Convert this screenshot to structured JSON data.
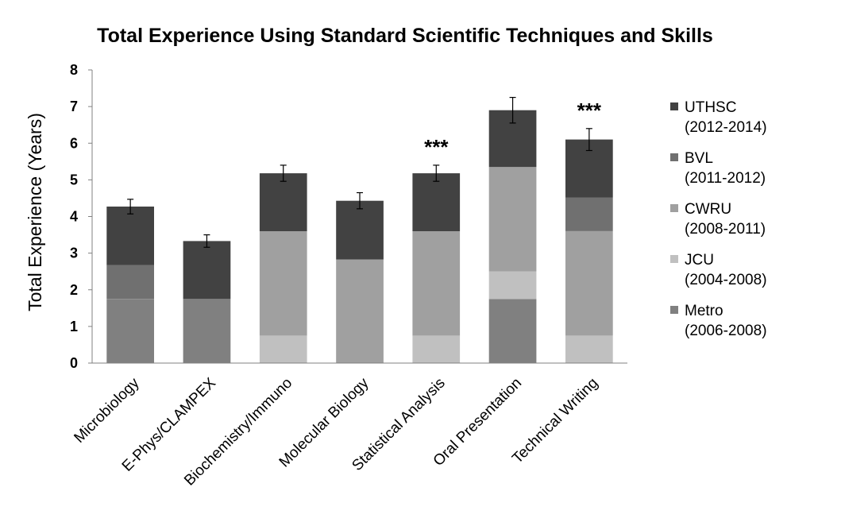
{
  "chart_data": {
    "type": "bar",
    "stacked": true,
    "title": "Total Experience Using Standard Scientific Techniques and Skills",
    "xlabel": "",
    "ylabel": "Total Experience (Years)",
    "ylim": [
      0,
      8
    ],
    "yticks": [
      0,
      1,
      2,
      3,
      4,
      5,
      6,
      7,
      8
    ],
    "grid": false,
    "legend_position": "right",
    "categories": [
      "Microbiology",
      "E-Phys/CLAMPEX",
      "Biochemistry/Immuno",
      "Molecular Biology",
      "Statistical Analysis",
      "Oral Presentation",
      "Technical Writing"
    ],
    "series": [
      {
        "name": "Metro\n(2006-2008)",
        "color": "#808080",
        "values": [
          1.75,
          1.75,
          0,
          0,
          0,
          1.75,
          0
        ]
      },
      {
        "name": "JCU\n(2004-2008)",
        "color": "#c0c0c0",
        "values": [
          0,
          0,
          0.75,
          0,
          0.75,
          0.75,
          0.75
        ]
      },
      {
        "name": "CWRU\n(2008-2011)",
        "color": "#a0a0a0",
        "values": [
          0,
          0,
          2.85,
          2.83,
          2.85,
          2.85,
          2.85
        ]
      },
      {
        "name": "BVL\n(2011-2012)",
        "color": "#707070",
        "values": [
          0.92,
          0,
          0,
          0,
          0,
          0,
          0.92
        ]
      },
      {
        "name": "UTHSC\n(2012-2014)",
        "color": "#424242",
        "values": [
          1.6,
          1.58,
          1.58,
          1.6,
          1.58,
          1.55,
          1.58
        ]
      }
    ],
    "error_bars": [
      0.2,
      0.17,
      0.22,
      0.22,
      0.22,
      0.35,
      0.3
    ],
    "annotations": [
      {
        "category": "Statistical Analysis",
        "text": "***"
      },
      {
        "category": "Technical Writing",
        "text": "***"
      }
    ]
  }
}
